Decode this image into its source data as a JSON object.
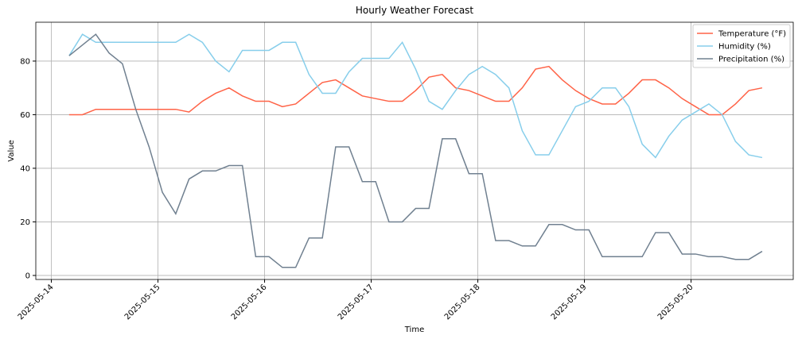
{
  "chart_data": {
    "type": "line",
    "title": "Hourly Weather Forecast",
    "xlabel": "Time",
    "ylabel": "Value",
    "x": [
      "2025-05-14 04:00",
      "2025-05-14 07:00",
      "2025-05-14 10:00",
      "2025-05-14 13:00",
      "2025-05-14 16:00",
      "2025-05-14 19:00",
      "2025-05-14 22:00",
      "2025-05-15 01:00",
      "2025-05-15 04:00",
      "2025-05-15 07:00",
      "2025-05-15 10:00",
      "2025-05-15 13:00",
      "2025-05-15 16:00",
      "2025-05-15 19:00",
      "2025-05-15 22:00",
      "2025-05-16 01:00",
      "2025-05-16 04:00",
      "2025-05-16 07:00",
      "2025-05-16 10:00",
      "2025-05-16 13:00",
      "2025-05-16 16:00",
      "2025-05-16 19:00",
      "2025-05-16 22:00",
      "2025-05-17 01:00",
      "2025-05-17 04:00",
      "2025-05-17 07:00",
      "2025-05-17 10:00",
      "2025-05-17 13:00",
      "2025-05-17 16:00",
      "2025-05-17 19:00",
      "2025-05-17 22:00",
      "2025-05-18 01:00",
      "2025-05-18 04:00",
      "2025-05-18 07:00",
      "2025-05-18 10:00",
      "2025-05-18 13:00",
      "2025-05-18 16:00",
      "2025-05-18 19:00",
      "2025-05-18 22:00",
      "2025-05-19 01:00",
      "2025-05-19 04:00",
      "2025-05-19 07:00",
      "2025-05-19 10:00",
      "2025-05-19 13:00",
      "2025-05-19 16:00",
      "2025-05-19 19:00",
      "2025-05-19 22:00",
      "2025-05-20 01:00",
      "2025-05-20 04:00",
      "2025-05-20 07:00",
      "2025-05-20 10:00",
      "2025-05-20 13:00",
      "2025-05-20 16:00"
    ],
    "series": [
      {
        "name": "Temperature (°F)",
        "color": "#ff6347",
        "values": [
          60,
          60,
          62,
          62,
          62,
          62,
          62,
          62,
          62,
          61,
          65,
          68,
          70,
          67,
          65,
          65,
          63,
          64,
          68,
          72,
          73,
          70,
          67,
          66,
          65,
          65,
          69,
          74,
          75,
          70,
          69,
          67,
          65,
          65,
          70,
          77,
          78,
          73,
          69,
          66,
          64,
          64,
          68,
          73,
          73,
          70,
          66,
          63,
          60,
          60,
          64,
          69,
          70
        ]
      },
      {
        "name": "Humidity (%)",
        "color": "#87ceeb",
        "values": [
          82,
          90,
          87,
          87,
          87,
          87,
          87,
          87,
          87,
          90,
          87,
          80,
          76,
          84,
          84,
          84,
          87,
          87,
          75,
          68,
          68,
          76,
          81,
          81,
          81,
          87,
          77,
          65,
          62,
          69,
          75,
          78,
          75,
          70,
          54,
          45,
          45,
          54,
          63,
          65,
          70,
          70,
          63,
          49,
          44,
          52,
          58,
          61,
          64,
          60,
          50,
          45,
          44
        ]
      },
      {
        "name": "Precipitation (%)",
        "color": "#708090",
        "values": [
          82,
          86,
          90,
          83,
          79,
          62,
          48,
          31,
          23,
          36,
          39,
          39,
          41,
          41,
          7,
          7,
          3,
          3,
          14,
          14,
          48,
          48,
          35,
          35,
          20,
          20,
          25,
          25,
          51,
          51,
          38,
          38,
          13,
          13,
          11,
          11,
          19,
          19,
          17,
          17,
          7,
          7,
          7,
          7,
          16,
          16,
          8,
          8,
          7,
          7,
          6,
          6,
          9
        ]
      }
    ],
    "xlim": [
      "2025-05-13 20:30",
      "2025-05-20 23:00"
    ],
    "xticks": [
      "2025-05-14",
      "2025-05-15",
      "2025-05-16",
      "2025-05-17",
      "2025-05-18",
      "2025-05-19",
      "2025-05-20"
    ],
    "ylim": [
      -1.5,
      94.5
    ],
    "yticks": [
      0,
      20,
      40,
      60,
      80
    ],
    "grid": true,
    "legend": "upper right"
  }
}
